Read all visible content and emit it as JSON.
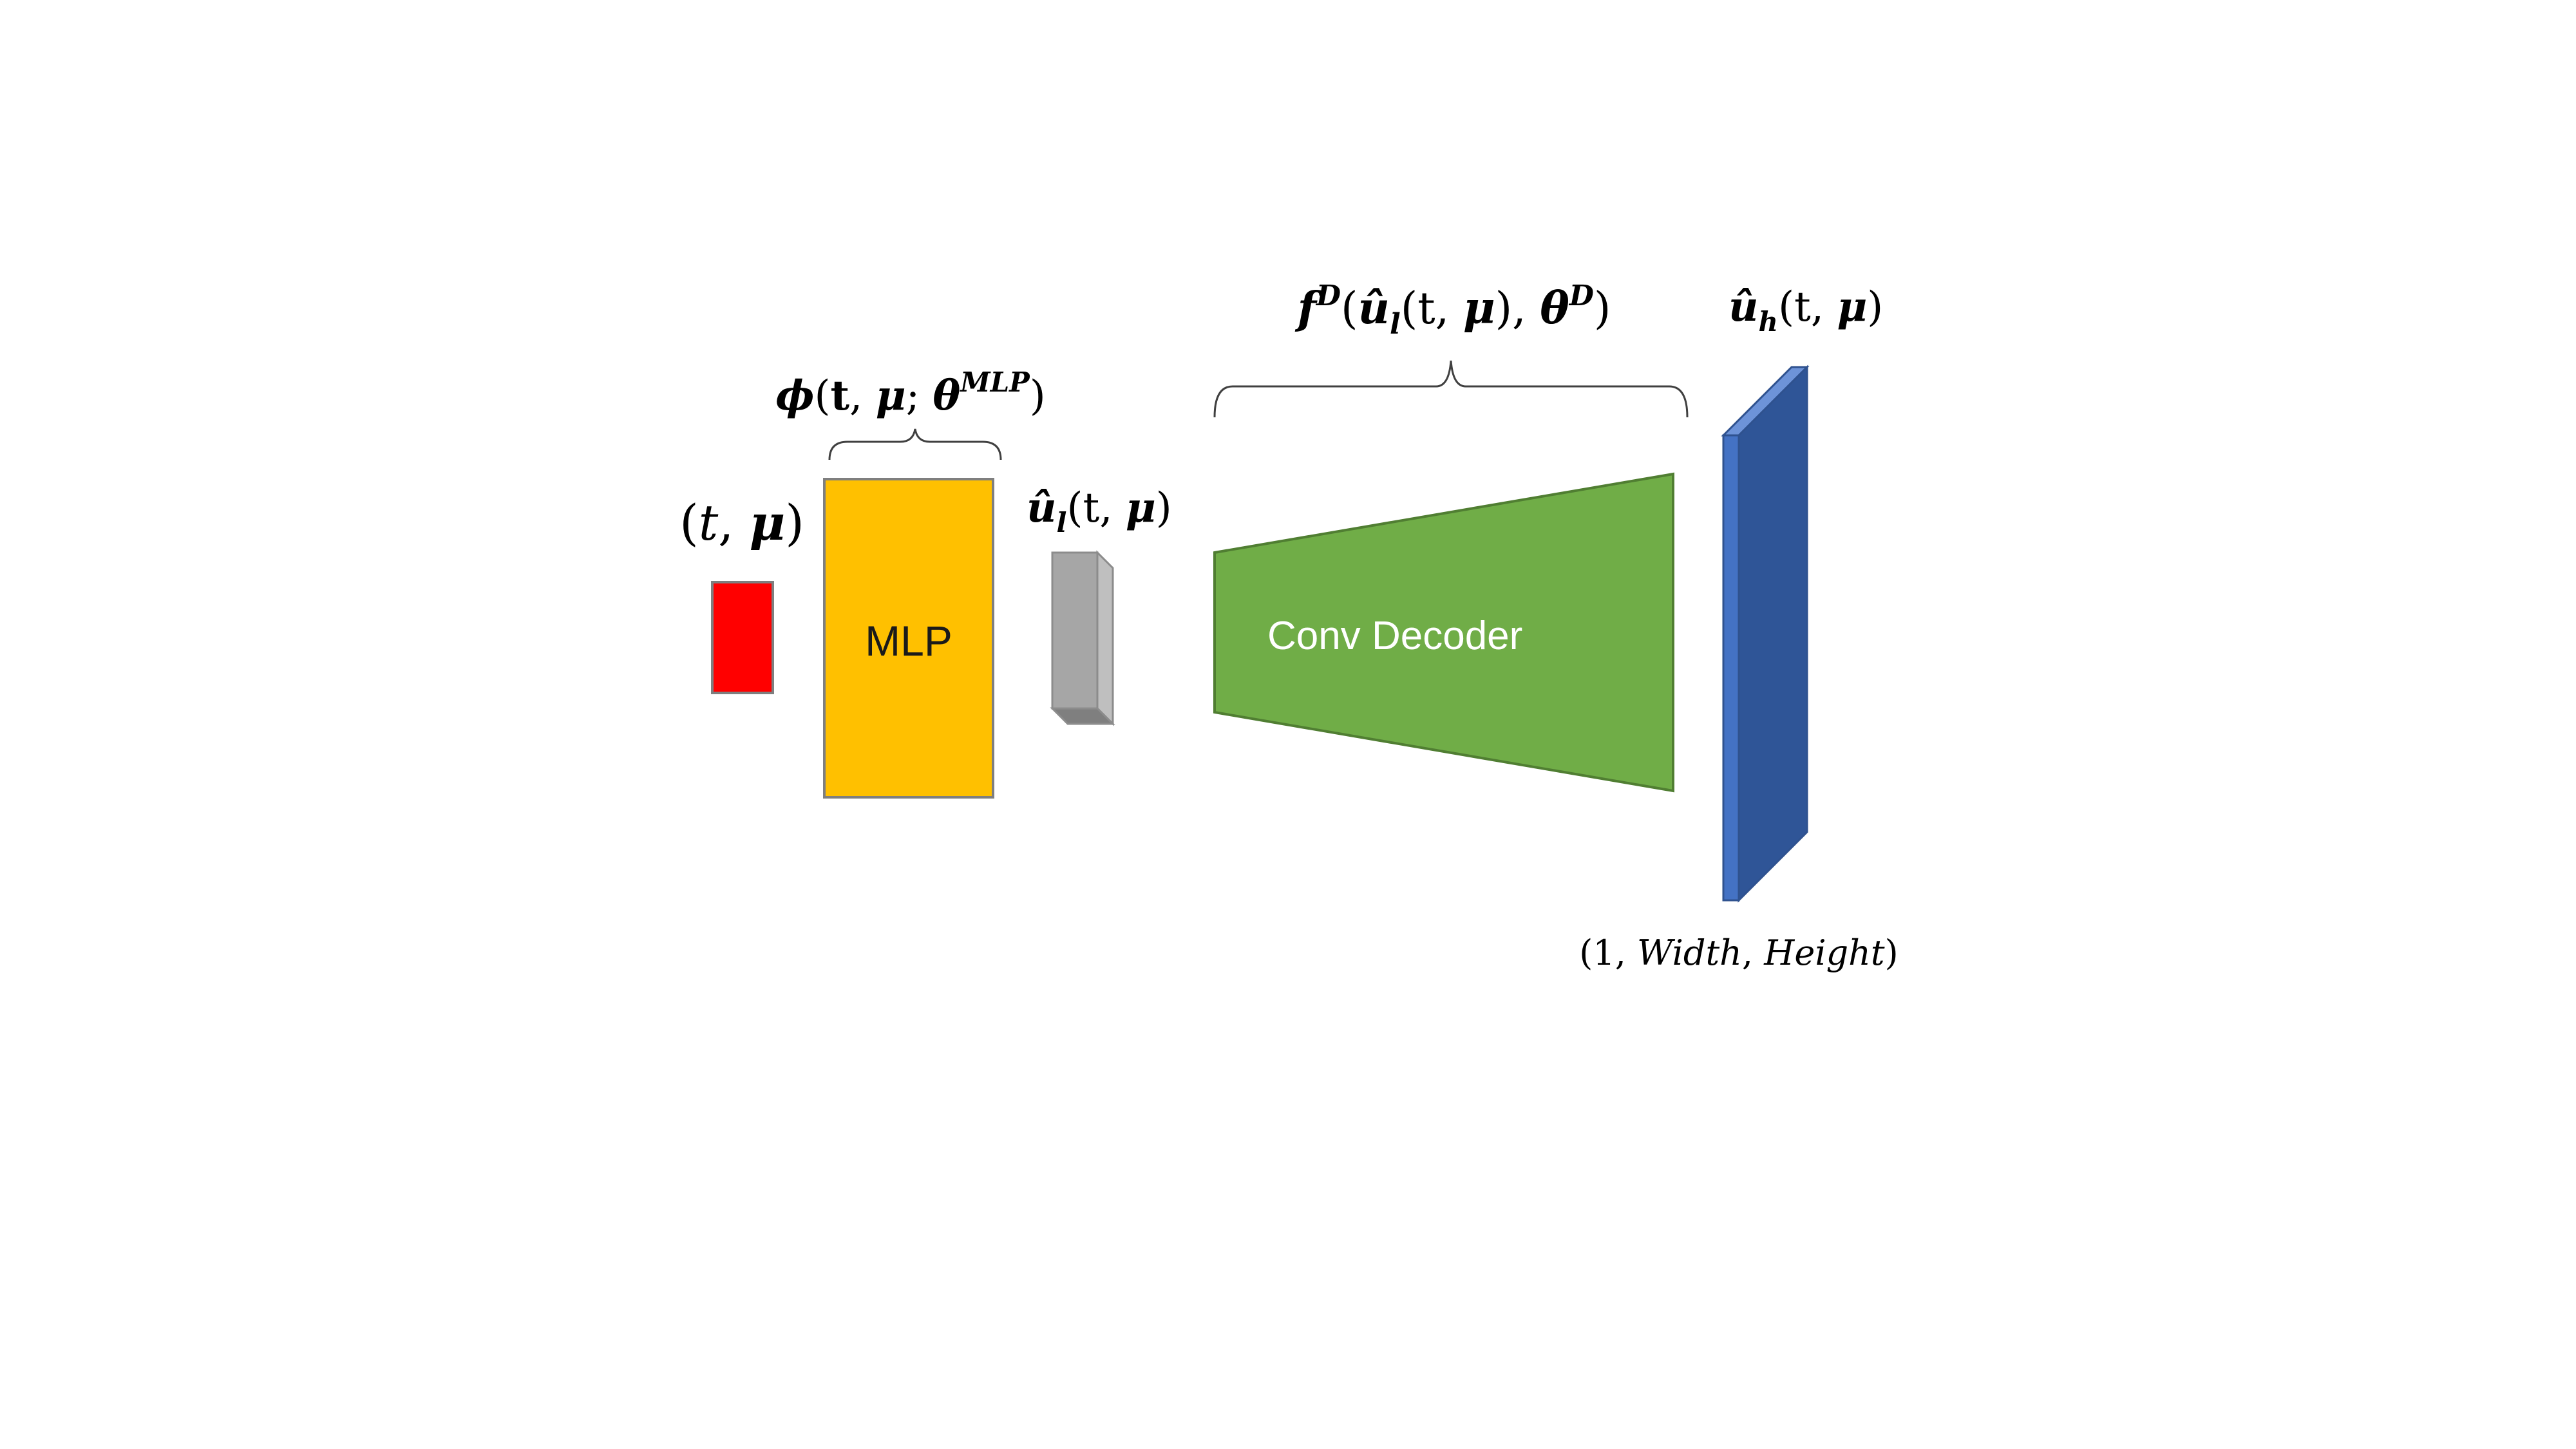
{
  "diagram": {
    "input": {
      "label_open": "(",
      "label_t": "t",
      "label_comma": ", ",
      "label_mu": "μ",
      "label_close": ")",
      "color": "#ff0000"
    },
    "mlp": {
      "box_label": "MLP",
      "brace_phi": "ϕ",
      "brace_open": "(",
      "brace_t": "t",
      "brace_comma": ", ",
      "brace_mu": "μ",
      "brace_semicolon": "; ",
      "brace_theta": "θ",
      "brace_sup": "MLP",
      "brace_close": ")",
      "color": "#ffc000"
    },
    "latent": {
      "u_symbol": "û",
      "subscript": "l",
      "args_open": "(t, ",
      "args_mu": "μ",
      "args_close": ")",
      "color": "#a6a6a6"
    },
    "decoder": {
      "box_label": "Conv Decoder",
      "brace_f": "f",
      "brace_f_sup": "D",
      "brace_open": "(",
      "brace_u": "û",
      "brace_u_sub": "l",
      "brace_args_open": "(t, ",
      "brace_mu": "μ",
      "brace_args_close": "), ",
      "brace_theta": "θ",
      "brace_theta_sup": "D",
      "brace_close": ")",
      "color": "#70ad47"
    },
    "output": {
      "u_symbol": "û",
      "subscript": "h",
      "args_open": "(t, ",
      "args_mu": "μ",
      "args_close": ")",
      "dims_open": "(1, ",
      "dims_width": "Width",
      "dims_comma": ", ",
      "dims_height": "Height",
      "dims_close": ")",
      "color": "#2f5597"
    }
  }
}
